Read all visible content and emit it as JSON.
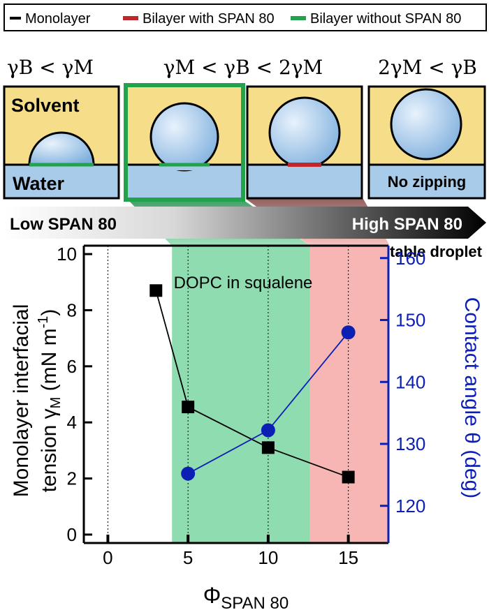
{
  "legend": {
    "items": [
      {
        "label": "Monolayer",
        "color": "#000000"
      },
      {
        "label": "Bilayer with SPAN 80",
        "color": "#c0272d"
      },
      {
        "label": "Bilayer without SPAN 80",
        "color": "#22a24a"
      }
    ]
  },
  "regimes": [
    {
      "condition": "γB < γM",
      "solvent_label": "Solvent",
      "water_label": "Water",
      "highlighted": false,
      "bilayer": "without SPAN 80"
    },
    {
      "condition": "γM < γB < 2γM",
      "highlighted": true,
      "bilayer": "without SPAN 80"
    },
    {
      "highlighted": false,
      "bilayer": "with SPAN 80"
    },
    {
      "condition": "2γM < γB",
      "water_label": "No zipping",
      "highlighted": false,
      "bilayer": "none"
    }
  ],
  "gradient_arrow": {
    "left_label": "Low SPAN 80",
    "right_label": "High SPAN 80"
  },
  "stable_droplet_label": "Stable droplet",
  "colors": {
    "solvent": "#f5dd8a",
    "water": "#a8cbe9",
    "green_band": "#8fdcb0",
    "red_band": "#f7b6b3",
    "monolayer_series": "#000000",
    "contact_angle_series": "#0b1fb5",
    "highlight_border": "#22a24a"
  },
  "chart_data": {
    "type": "scatter",
    "annotation": "DOPC in squalene",
    "xlabel": "ΦSPAN 80",
    "ylabel_left": "Monolayer interfacial tension γM (mN m-1)",
    "ylabel_right": "Contact angle θ (deg)",
    "xlim": [
      -1.5,
      17.5
    ],
    "ylim_left": [
      -0.3,
      10.3
    ],
    "ylim_right": [
      114,
      162
    ],
    "x_ticks": [
      0,
      5,
      10,
      15
    ],
    "y_left_ticks": [
      0,
      2,
      4,
      6,
      8,
      10
    ],
    "y_right_ticks": [
      120,
      130,
      140,
      150,
      160
    ],
    "shaded_regions": [
      {
        "x_from": 4.0,
        "x_to": 12.6,
        "color": "green"
      },
      {
        "x_from": 12.6,
        "x_to": 17.5,
        "color": "red"
      }
    ],
    "series": [
      {
        "name": "Monolayer interfacial tension",
        "axis": "left",
        "marker": "square",
        "x": [
          3,
          5,
          10,
          15
        ],
        "y": [
          8.7,
          4.55,
          3.1,
          2.05
        ]
      },
      {
        "name": "Contact angle",
        "axis": "right",
        "marker": "circle",
        "x": [
          5,
          10,
          15
        ],
        "y": [
          125.2,
          132.2,
          148.0
        ]
      }
    ]
  }
}
